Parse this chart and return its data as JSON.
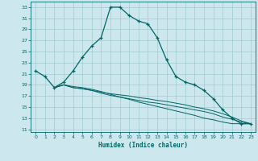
{
  "xlabel": "Humidex (Indice chaleur)",
  "bg_color": "#cce8ee",
  "grid_color": "#a0cccc",
  "line_color": "#006666",
  "xlim": [
    -0.5,
    23.5
  ],
  "ylim": [
    10.5,
    34.0
  ],
  "yticks": [
    11,
    13,
    15,
    17,
    19,
    21,
    23,
    25,
    27,
    29,
    31,
    33
  ],
  "xticks": [
    0,
    1,
    2,
    3,
    4,
    5,
    6,
    7,
    8,
    9,
    10,
    11,
    12,
    13,
    14,
    15,
    16,
    17,
    18,
    19,
    20,
    21,
    22,
    23
  ],
  "line1_x": [
    0,
    1,
    2,
    3,
    4,
    5,
    6,
    7,
    8,
    9,
    10,
    11,
    12,
    13,
    14,
    15,
    16,
    17,
    18,
    19,
    20,
    21,
    22,
    23
  ],
  "line1_y": [
    21.5,
    20.5,
    18.5,
    19.5,
    21.5,
    24.0,
    26.0,
    27.5,
    33.0,
    33.0,
    31.5,
    30.5,
    30.0,
    27.5,
    23.5,
    20.5,
    19.5,
    19.0,
    18.0,
    16.5,
    14.5,
    13.0,
    12.0,
    12.0
  ],
  "line2_x": [
    2,
    3,
    4,
    5,
    6,
    7,
    8,
    9,
    10,
    11,
    12,
    13,
    14,
    15,
    16,
    17,
    18,
    19,
    20,
    21,
    22,
    23
  ],
  "line2_y": [
    18.5,
    19.0,
    18.5,
    18.3,
    18.0,
    17.7,
    17.4,
    17.2,
    17.0,
    16.7,
    16.5,
    16.2,
    16.0,
    15.7,
    15.4,
    15.0,
    14.7,
    14.3,
    13.8,
    13.2,
    12.5,
    12.0
  ],
  "line3_x": [
    2,
    3,
    4,
    5,
    6,
    7,
    8,
    9,
    10,
    11,
    12,
    13,
    14,
    15,
    16,
    17,
    18,
    19,
    20,
    21,
    22,
    23
  ],
  "line3_y": [
    18.5,
    19.0,
    18.5,
    18.3,
    18.0,
    17.5,
    17.1,
    16.8,
    16.5,
    16.2,
    15.9,
    15.7,
    15.4,
    15.1,
    14.8,
    14.5,
    14.2,
    13.8,
    13.2,
    12.8,
    12.3,
    12.0
  ],
  "line4_x": [
    2,
    3,
    4,
    5,
    6,
    7,
    8,
    9,
    10,
    11,
    12,
    13,
    14,
    15,
    16,
    17,
    18,
    19,
    20,
    21,
    22,
    23
  ],
  "line4_y": [
    18.5,
    19.0,
    18.7,
    18.5,
    18.2,
    17.8,
    17.3,
    16.8,
    16.4,
    15.9,
    15.5,
    15.1,
    14.7,
    14.3,
    13.9,
    13.5,
    13.0,
    12.7,
    12.3,
    12.0,
    12.0,
    12.0
  ]
}
